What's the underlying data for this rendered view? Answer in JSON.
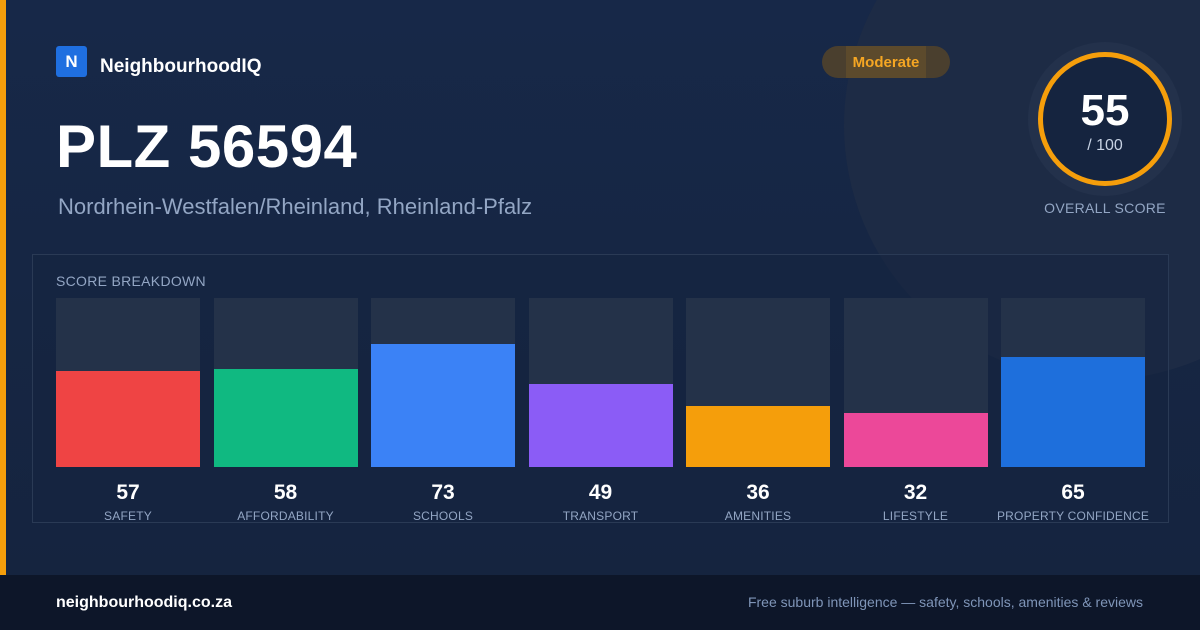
{
  "brand": {
    "logo_letter": "N",
    "name": "NeighbourhoodIQ"
  },
  "rating_badge": "Moderate",
  "title": "PLZ 56594",
  "subtitle": "Nordrhein-Westfalen/Rheinland, Rheinland-Pfalz",
  "overall": {
    "score": "55",
    "max": "/ 100",
    "caption": "OVERALL SCORE"
  },
  "breakdown": {
    "title": "SCORE BREAKDOWN"
  },
  "colors": {
    "accent": "#f59e0b"
  },
  "chart_data": {
    "type": "bar",
    "max": 100,
    "categories": [
      "SAFETY",
      "AFFORDABILITY",
      "SCHOOLS",
      "TRANSPORT",
      "AMENITIES",
      "LIFESTYLE",
      "PROPERTY CONFIDENCE"
    ],
    "values": [
      57,
      58,
      73,
      49,
      36,
      32,
      65
    ],
    "colors": [
      "#ef4444",
      "#10b981",
      "#3b82f6",
      "#8b5cf6",
      "#f59e0b",
      "#ec4899",
      "#1e6fdc"
    ]
  },
  "footer": {
    "domain": "neighbourhoodiq.co.za",
    "tagline": "Free suburb intelligence — safety, schools, amenities & reviews"
  }
}
